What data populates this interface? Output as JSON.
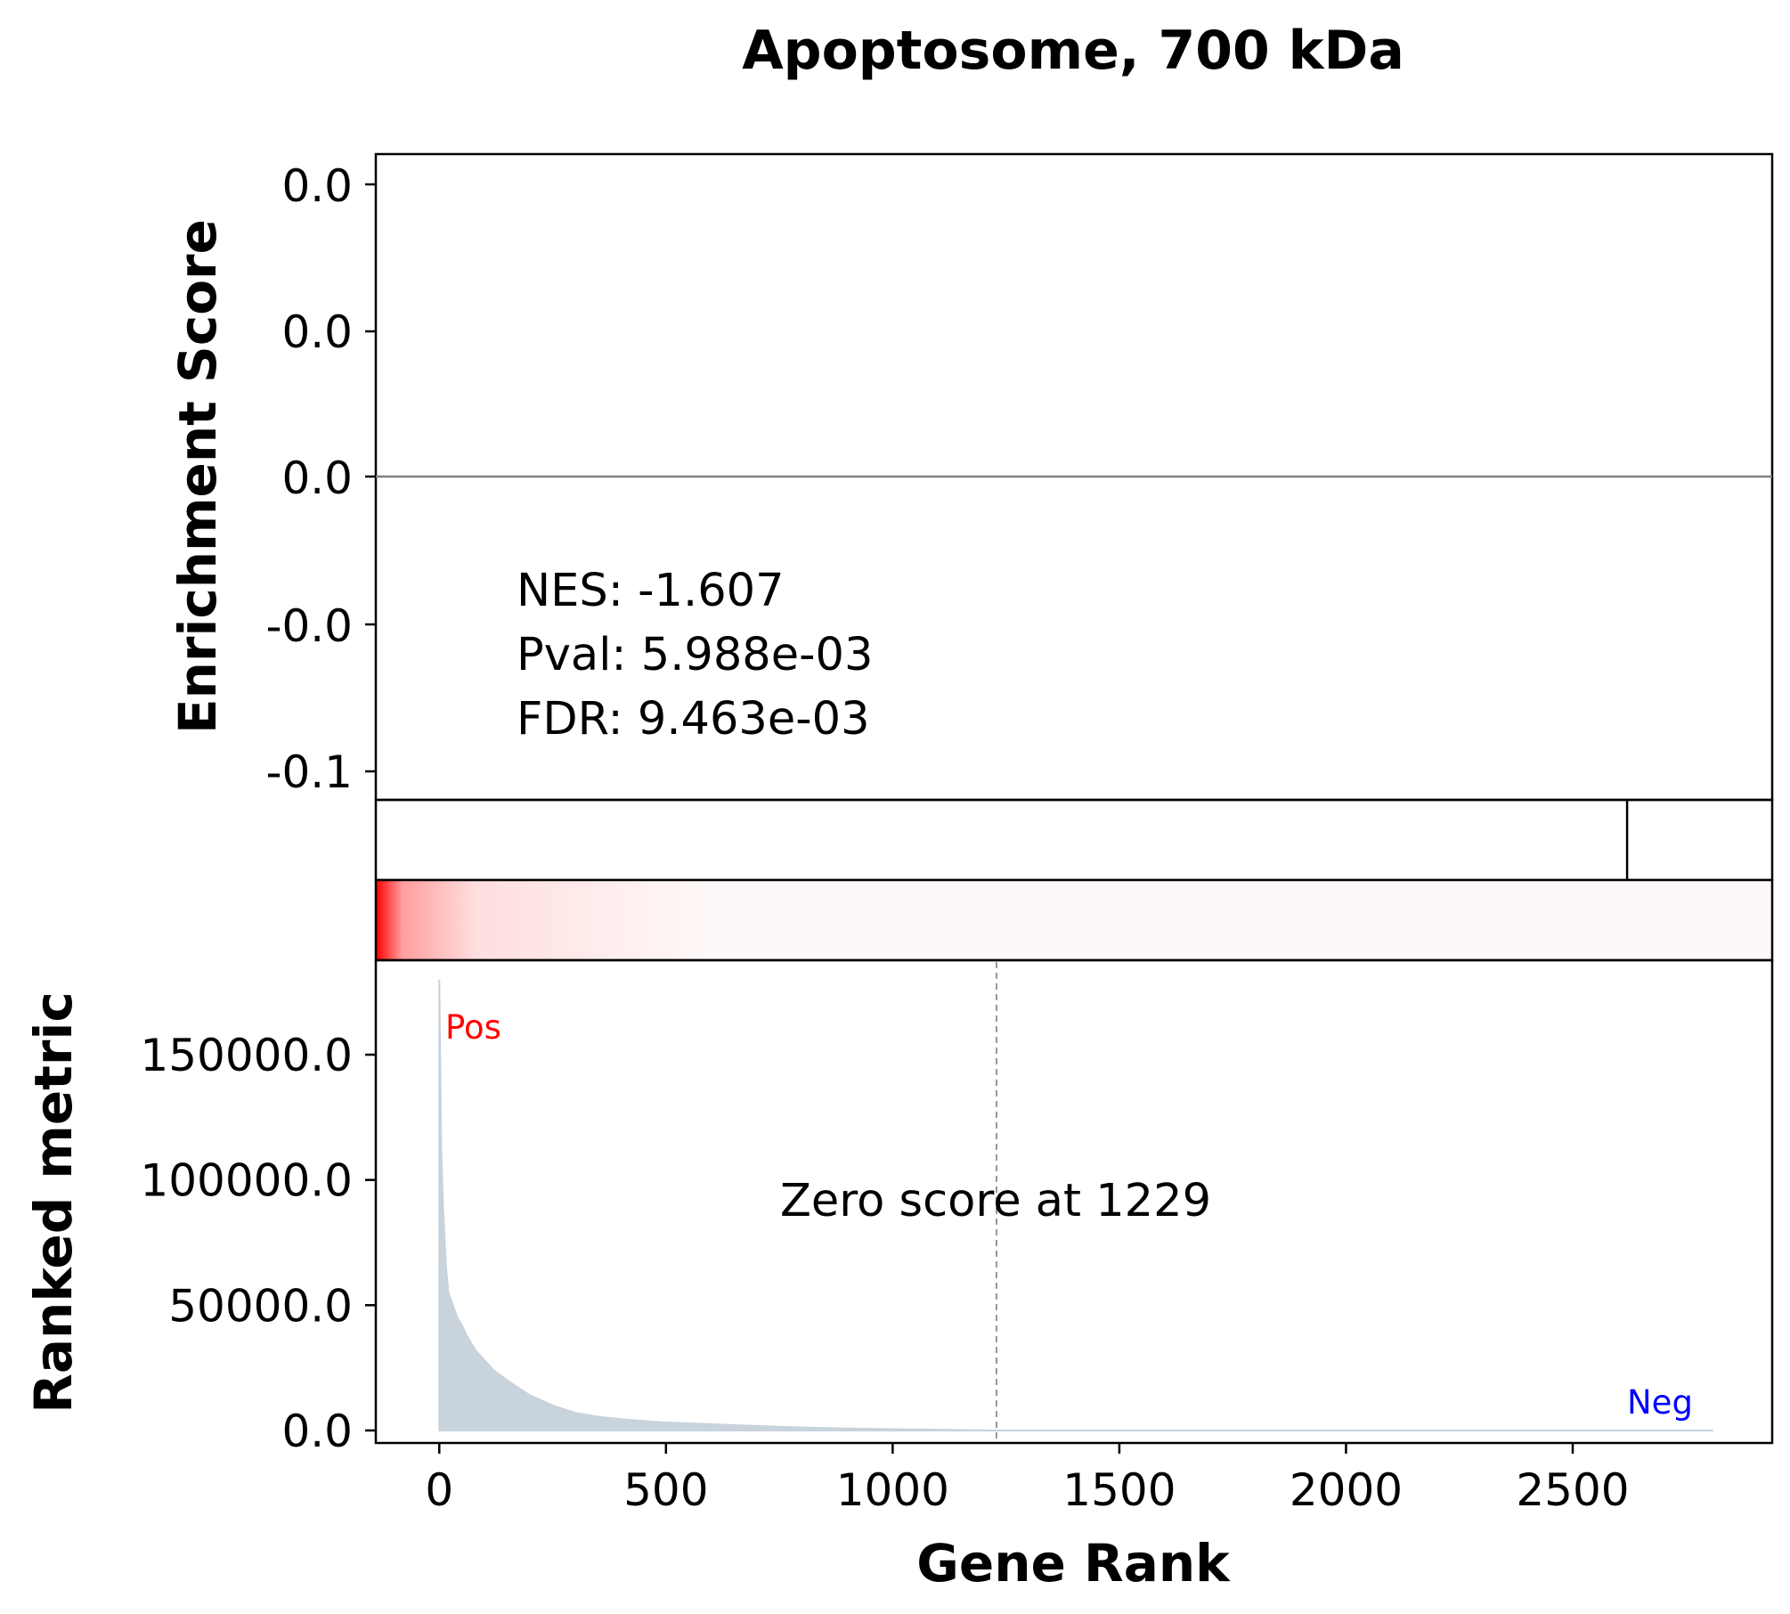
{
  "title": "Apoptosome, 700 kDa",
  "colors": {
    "baseline": "#808080",
    "area_fill": "#c8d3dc",
    "heat_high": "#ff0000",
    "heat_low": "#fff8f8",
    "pos_label": "#ff0000",
    "neg_label": "#0000ff",
    "zero_line": "#808080"
  },
  "chart_data": [
    {
      "type": "line",
      "panel": "enrichment",
      "ylabel": "Enrichment Score",
      "yticks": [
        "0.0",
        "0.0",
        "0.0",
        "-0.0",
        "-0.1"
      ],
      "baseline_y": 0.0,
      "stats": {
        "nes": "NES: -1.607",
        "pval": "Pval: 5.988e-03",
        "fdr": "FDR: 9.463e-03"
      }
    },
    {
      "type": "hits",
      "panel": "gene-set-hits",
      "hits": [
        2620
      ]
    },
    {
      "type": "heatmap",
      "panel": "rank-gradient",
      "xlim": [
        -140,
        2940
      ],
      "gradient_end_rank": 590
    },
    {
      "type": "area",
      "panel": "ranked-metric",
      "ylabel": "Ranked metric",
      "xlabel": "Gene Rank",
      "xlim": [
        -140,
        2940
      ],
      "ylim": [
        -5000,
        187000
      ],
      "xticks": [
        0,
        500,
        1000,
        1500,
        2000,
        2500
      ],
      "yticks": [
        0,
        50000,
        100000,
        150000
      ],
      "ytick_labels": [
        "0.0",
        "50000.0",
        "100000.0",
        "150000.0"
      ],
      "x": [
        0,
        2,
        4,
        8,
        15,
        20,
        30,
        40,
        50,
        60,
        70,
        80,
        100,
        120,
        150,
        200,
        250,
        300,
        350,
        400,
        450,
        500,
        600,
        700,
        800,
        900,
        1000,
        1100,
        1229,
        1500,
        2000,
        2500,
        2810
      ],
      "y": [
        180000,
        150000,
        115000,
        90000,
        65000,
        55000,
        50000,
        45000,
        42000,
        38000,
        35000,
        32000,
        28000,
        24000,
        20000,
        14000,
        10000,
        7000,
        5500,
        4500,
        3800,
        3200,
        2500,
        1800,
        1200,
        800,
        500,
        300,
        0,
        0,
        0,
        0,
        0
      ],
      "zero_score": 1229,
      "zero_label": "Zero score at 1229",
      "pos_label": "Pos",
      "neg_label": "Neg"
    }
  ]
}
